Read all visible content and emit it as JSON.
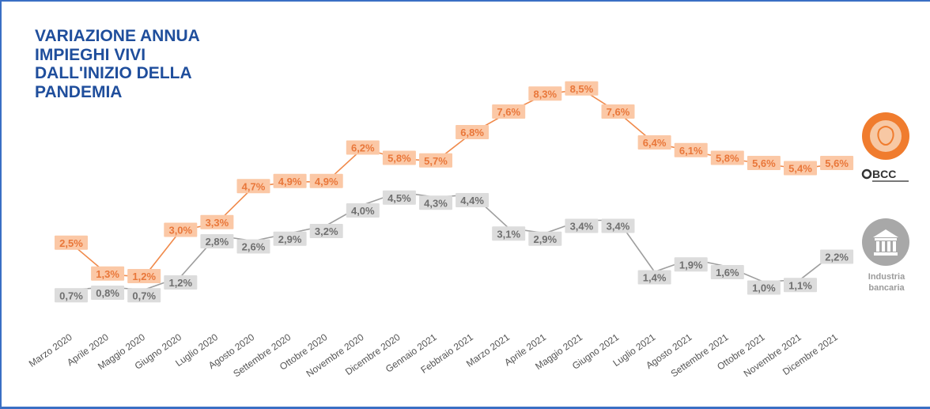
{
  "chart_data": {
    "type": "line",
    "title": "VARIAZIONE ANNUA IMPIEGHI VIVI DALL'INIZIO DELLA PANDEMIA",
    "categories": [
      "Marzo 2020",
      "Aprile 2020",
      "Maggio 2020",
      "Giugno 2020",
      "Luglio 2020",
      "Agosto 2020",
      "Settembre 2020",
      "Ottobre 2020",
      "Novembre 2020",
      "Dicembre 2020",
      "Gennaio 2021",
      "Febbraio 2021",
      "Marzo 2021",
      "Aprile 2021",
      "Maggio 2021",
      "Giugno 2021",
      "Luglio 2021",
      "Agosto 2021",
      "Settembre 2021",
      "Ottobre 2021",
      "Novembre 2021",
      "Dicembre 2021"
    ],
    "series": [
      {
        "name": "BCC",
        "color": "#f08a4b",
        "values": [
          2.5,
          1.3,
          1.2,
          3.0,
          3.3,
          4.7,
          4.9,
          4.9,
          6.2,
          5.8,
          5.7,
          6.8,
          7.6,
          8.3,
          8.5,
          7.6,
          6.4,
          6.1,
          5.8,
          5.6,
          5.4,
          5.6
        ],
        "labels": [
          "2,5%",
          "1,3%",
          "1,2%",
          "3,0%",
          "3,3%",
          "4,7%",
          "4,9%",
          "4,9%",
          "6,2%",
          "5,8%",
          "5,7%",
          "6,8%",
          "7,6%",
          "8,3%",
          "8,5%",
          "7,6%",
          "6,4%",
          "6,1%",
          "5,8%",
          "5,6%",
          "5,4%",
          "5,6%"
        ]
      },
      {
        "name": "Industria bancaria",
        "color": "#9e9e9e",
        "values": [
          0.7,
          0.8,
          0.7,
          1.2,
          2.8,
          2.6,
          2.9,
          3.2,
          4.0,
          4.5,
          4.3,
          4.4,
          3.1,
          2.9,
          3.4,
          3.4,
          1.4,
          1.9,
          1.6,
          1.0,
          1.1,
          2.2
        ],
        "labels": [
          "0,7%",
          "0,8%",
          "0,7%",
          "1,2%",
          "2,8%",
          "2,6%",
          "2,9%",
          "3,2%",
          "4,0%",
          "4,5%",
          "4,3%",
          "4,4%",
          "3,1%",
          "2,9%",
          "3,4%",
          "3,4%",
          "1,4%",
          "1,9%",
          "1,6%",
          "1,0%",
          "1,1%",
          "2,2%"
        ]
      }
    ],
    "grid": false,
    "legend": "right"
  },
  "title_lines": [
    "VARIAZIONE ANNUA",
    "IMPIEGHI VIVI",
    "DALL'INIZIO DELLA",
    "PANDEMIA"
  ],
  "legend": {
    "bcc_icon": "bcc-logo-icon",
    "bcc_label": "BCC",
    "bank_icon": "bank-building-icon",
    "bank_label_lines": [
      "Industria",
      "bancaria"
    ]
  }
}
